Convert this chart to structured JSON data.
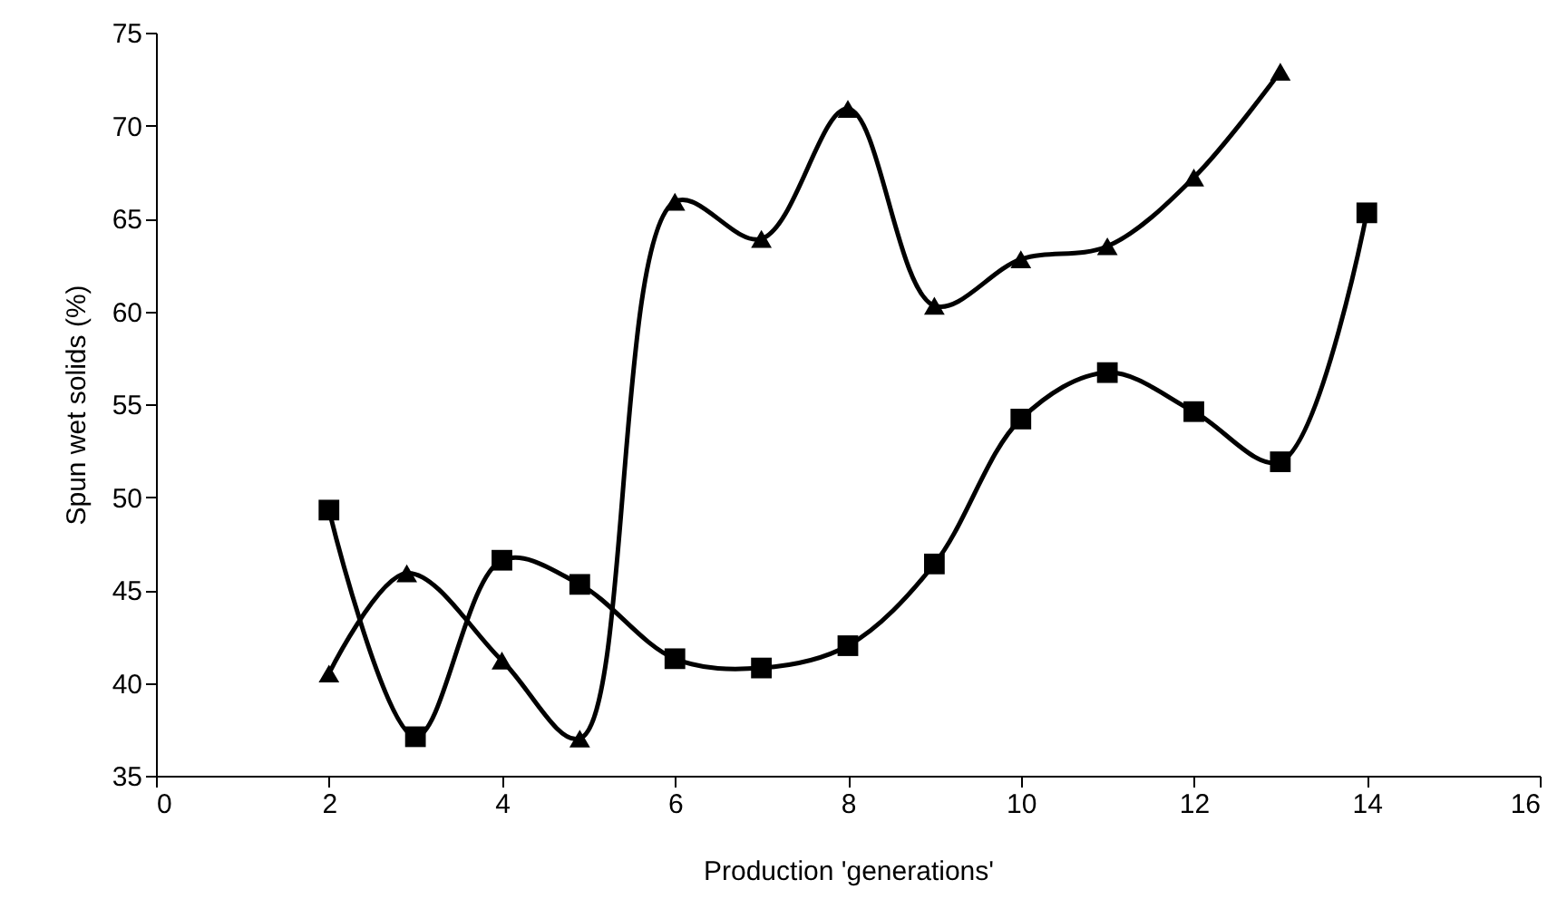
{
  "chart_data": {
    "type": "line",
    "xlabel": "Production 'generations'",
    "ylabel": "Spun wet solids (%)",
    "xlim": [
      0,
      16
    ],
    "xticks": [
      0,
      2,
      4,
      6,
      8,
      10,
      12,
      14,
      16
    ],
    "ylim": [
      35,
      75
    ],
    "yticks": [
      35,
      40,
      45,
      50,
      55,
      60,
      65,
      70,
      75
    ],
    "grid": false,
    "series": [
      {
        "color": "#000000",
        "marker": "triangle",
        "x": [
          2,
          2.9,
          4,
          4.9,
          6,
          7,
          8,
          9,
          10,
          11,
          12,
          13
        ],
        "values": [
          40.5,
          45.9,
          41.2,
          37.0,
          65.9,
          63.9,
          70.9,
          60.3,
          62.8,
          63.5,
          67.2,
          72.9
        ]
      },
      {
        "color": "#000000",
        "marker": "square",
        "x": [
          2,
          3,
          4,
          4.9,
          6,
          7,
          8,
          9,
          10,
          11,
          12,
          13,
          14
        ],
        "values": [
          49.3,
          37.1,
          46.6,
          45.3,
          41.3,
          40.8,
          42.0,
          46.4,
          54.2,
          56.7,
          54.6,
          51.9,
          65.3
        ]
      }
    ]
  }
}
